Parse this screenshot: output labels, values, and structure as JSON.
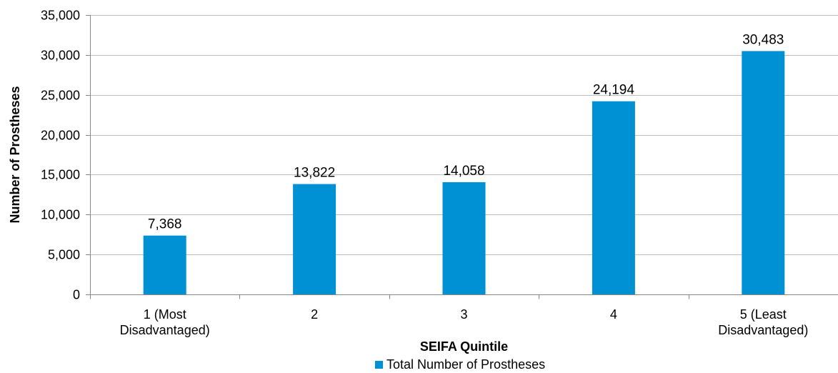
{
  "chart_data": {
    "type": "bar",
    "categories": [
      [
        "1 (Most",
        "Disadvantaged)"
      ],
      [
        "2"
      ],
      [
        "3"
      ],
      [
        "4"
      ],
      [
        "5 (Least",
        "Disadvantaged)"
      ]
    ],
    "series": [
      {
        "name": "Total Number of Prostheses",
        "values": [
          7368,
          13822,
          14058,
          24194,
          30483
        ],
        "labels": [
          "7,368",
          "13,822",
          "14,058",
          "24,194",
          "30,483"
        ],
        "color": "#0091D5"
      }
    ],
    "title": "",
    "xlabel": "SEIFA Quintile",
    "ylabel": "Number of Prostheses",
    "ylim": [
      0,
      35000
    ],
    "yticks": [
      0,
      5000,
      10000,
      15000,
      20000,
      25000,
      30000,
      35000
    ],
    "ytick_labels": [
      "0",
      "5,000",
      "10,000",
      "15,000",
      "20,000",
      "25,000",
      "30,000",
      "35,000"
    ],
    "grid": true,
    "legend": "bottom-center",
    "colors": {
      "bar": "#0091D5",
      "grid": "#BFBFBF",
      "axis": "#868686"
    }
  }
}
